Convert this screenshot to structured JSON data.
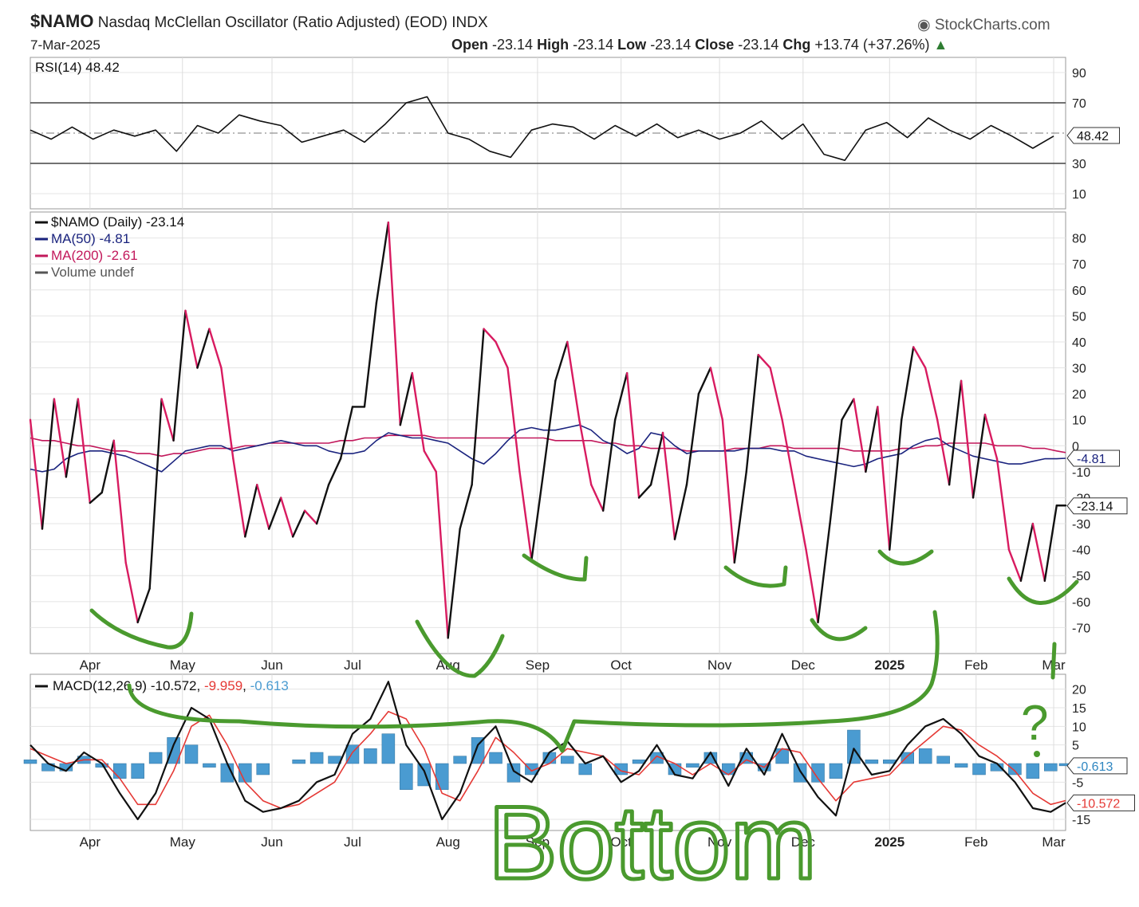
{
  "header": {
    "symbol": "$NAMO",
    "name": "Nasdaq McClellan Oscillator (Ratio Adjusted) (EOD)",
    "exchange": "INDX",
    "date": "7-Mar-2025",
    "brand": "StockCharts.com",
    "ohlc": [
      {
        "label": "Open",
        "value": "-23.14"
      },
      {
        "label": "High",
        "value": "-23.14"
      },
      {
        "label": "Low",
        "value": "-23.14"
      },
      {
        "label": "Close",
        "value": "-23.14"
      },
      {
        "label": "Chg",
        "value": "+13.74 (+37.26%)"
      }
    ]
  },
  "annotations": {
    "question": "?",
    "bottom_word": "Bottom",
    "color": "#4a9a2e"
  },
  "chart_data": [
    {
      "type": "line",
      "panel": "rsi",
      "legend": "RSI(14) 48.42",
      "last_label": "48.42",
      "ylim": [
        0,
        100
      ],
      "ticks": [
        10,
        30,
        70,
        90
      ],
      "ref_lines": [
        30,
        50,
        70
      ],
      "x": [
        0,
        7,
        14,
        21,
        28,
        35,
        42,
        49,
        56,
        63,
        70,
        77,
        84,
        91,
        98,
        105,
        112,
        119,
        126,
        133,
        140,
        147,
        154,
        161,
        168,
        175,
        182,
        189,
        196,
        203,
        210,
        217,
        224,
        231,
        238,
        245,
        252,
        259,
        266,
        273,
        280,
        287,
        294,
        301,
        308,
        315,
        322,
        329,
        336,
        343
      ],
      "series": [
        {
          "values": [
            52,
            46,
            54,
            46,
            52,
            48,
            52,
            38,
            55,
            50,
            62,
            58,
            55,
            44,
            48,
            52,
            44,
            56,
            70,
            74,
            50,
            46,
            38,
            34,
            52,
            56,
            54,
            46,
            55,
            48,
            56,
            47,
            52,
            46,
            50,
            58,
            46,
            56,
            36,
            32,
            52,
            57,
            47,
            60,
            52,
            46,
            55,
            48,
            40,
            48
          ]
        }
      ],
      "color": "#111111"
    },
    {
      "type": "line",
      "panel": "main",
      "ylim": [
        -80,
        90
      ],
      "ticks": [
        -70,
        -60,
        -50,
        -40,
        -30,
        -20,
        -10,
        0,
        10,
        20,
        30,
        40,
        50,
        60,
        70,
        80
      ],
      "legend": [
        {
          "text": "$NAMO (Daily) -23.14",
          "color": "#111111"
        },
        {
          "text": "MA(50) -4.81",
          "color": "#1a237e"
        },
        {
          "text": "MA(200) -2.61",
          "color": "#c2185b"
        },
        {
          "text": "Volume undef",
          "color": "#555555"
        }
      ],
      "last_labels": [
        {
          "text": "-4.81",
          "value": -4.81
        },
        {
          "text": "-23.14",
          "value": -23.14
        }
      ],
      "x_labels": [
        {
          "label": "Apr",
          "day": 20
        },
        {
          "label": "May",
          "day": 51
        },
        {
          "label": "Jun",
          "day": 81
        },
        {
          "label": "Jul",
          "day": 108
        },
        {
          "label": "Aug",
          "day": 140
        },
        {
          "label": "Sep",
          "day": 170
        },
        {
          "label": "Oct",
          "day": 198
        },
        {
          "label": "Nov",
          "day": 231
        },
        {
          "label": "Dec",
          "day": 259
        },
        {
          "label": "2025",
          "day": 288
        },
        {
          "label": "Feb",
          "day": 317
        },
        {
          "label": "Mar",
          "day": 343
        }
      ],
      "x": [
        0,
        4,
        8,
        12,
        16,
        20,
        24,
        28,
        32,
        36,
        40,
        44,
        48,
        52,
        56,
        60,
        64,
        68,
        72,
        76,
        80,
        84,
        88,
        92,
        96,
        100,
        104,
        108,
        112,
        116,
        120,
        124,
        128,
        132,
        136,
        140,
        144,
        148,
        152,
        156,
        160,
        164,
        168,
        172,
        176,
        180,
        184,
        188,
        192,
        196,
        200,
        204,
        208,
        212,
        216,
        220,
        224,
        228,
        232,
        236,
        240,
        244,
        248,
        252,
        256,
        260,
        264,
        268,
        272,
        276,
        280,
        284,
        288,
        292,
        296,
        300,
        304,
        308,
        312,
        316,
        320,
        324,
        328,
        332,
        336,
        340,
        344,
        347
      ],
      "series": [
        {
          "name": "$NAMO (Daily)",
          "values": [
            10,
            -32,
            18,
            -12,
            18,
            -22,
            -18,
            2,
            -45,
            -68,
            -55,
            18,
            2,
            52,
            30,
            45,
            30,
            -5,
            -35,
            -15,
            -32,
            -20,
            -35,
            -25,
            -30,
            -15,
            -5,
            15,
            15,
            55,
            86,
            8,
            28,
            -2,
            -10,
            -74,
            -32,
            -15,
            45,
            40,
            30,
            -10,
            -44,
            -10,
            25,
            40,
            10,
            -15,
            -25,
            10,
            28,
            -20,
            -15,
            5,
            -36,
            -15,
            20,
            30,
            10,
            -45,
            -10,
            35,
            30,
            10,
            -15,
            -40,
            -68,
            -30,
            10,
            18,
            -10,
            15,
            -40,
            10,
            38,
            30,
            10,
            -15,
            25,
            -20,
            12,
            -5,
            -40,
            -52,
            -30,
            -52,
            -23,
            -23
          ]
        },
        {
          "name": "MA(50)",
          "values": [
            -9,
            -10,
            -9,
            -5,
            -3,
            -2,
            -2,
            -3,
            -4,
            -6,
            -8,
            -10,
            -6,
            -2,
            -1,
            0,
            0,
            -2,
            -1,
            0,
            1,
            2,
            1,
            0,
            0,
            -2,
            -3,
            -3,
            -2,
            2,
            5,
            4,
            3,
            3,
            2,
            1,
            -2,
            -5,
            -7,
            -3,
            2,
            6,
            7,
            6,
            6,
            7,
            8,
            6,
            2,
            0,
            -3,
            -1,
            5,
            4,
            0,
            -3,
            -2,
            -2,
            -2,
            -2,
            -1,
            -1,
            -1,
            -2,
            -2,
            -4,
            -5,
            -6,
            -7,
            -8,
            -7,
            -5,
            -4,
            -3,
            0,
            2,
            3,
            0,
            -2,
            -4,
            -5,
            -6,
            -7,
            -7,
            -6,
            -5,
            -5,
            -4.81
          ]
        },
        {
          "name": "MA(200)",
          "values": [
            3,
            2,
            2,
            1,
            0,
            0,
            -1,
            -2,
            -2,
            -3,
            -3,
            -4,
            -3,
            -3,
            -2,
            -1,
            -1,
            -1,
            0,
            0,
            1,
            1,
            1,
            1,
            1,
            1,
            2,
            2,
            3,
            3,
            4,
            4,
            4,
            4,
            3,
            3,
            3,
            3,
            3,
            3,
            3,
            3,
            3,
            3,
            2,
            2,
            2,
            2,
            1,
            1,
            0,
            0,
            -1,
            -1,
            -1,
            -2,
            -2,
            -2,
            -2,
            -1,
            -1,
            -1,
            0,
            0,
            -1,
            -1,
            -1,
            -1,
            -1,
            -2,
            -2,
            -2,
            -2,
            -1,
            -1,
            0,
            0,
            1,
            1,
            1,
            1,
            0,
            0,
            0,
            -1,
            -1,
            -2,
            -2.61
          ]
        }
      ]
    },
    {
      "type": "line",
      "panel": "macd",
      "legend": {
        "prefix": "MACD(12,26,9)",
        "macd": "-10.572",
        "signal": "-9.959",
        "hist": "-0.613"
      },
      "last_labels": [
        {
          "text": "-0.613",
          "value": -0.613,
          "fill": "#2e86c1"
        },
        {
          "text": "-10.572",
          "value": -10.572,
          "fill": "#e53935"
        }
      ],
      "ylim": [
        -18,
        24
      ],
      "ticks": [
        -15,
        -5,
        5,
        10,
        15,
        20
      ],
      "x": [
        0,
        6,
        12,
        18,
        24,
        30,
        36,
        42,
        48,
        54,
        60,
        66,
        72,
        78,
        84,
        90,
        96,
        102,
        108,
        114,
        120,
        126,
        132,
        138,
        144,
        150,
        156,
        162,
        168,
        174,
        180,
        186,
        192,
        198,
        204,
        210,
        216,
        222,
        228,
        234,
        240,
        246,
        252,
        258,
        264,
        270,
        276,
        282,
        288,
        294,
        300,
        306,
        312,
        318,
        324,
        330,
        336,
        342,
        347
      ],
      "series": [
        {
          "name": "MACD",
          "values": [
            5,
            0,
            -2,
            3,
            0,
            -8,
            -15,
            -8,
            5,
            15,
            12,
            0,
            -10,
            -13,
            -12,
            -10,
            -5,
            -3,
            8,
            12,
            22,
            5,
            -2,
            -15,
            -8,
            5,
            10,
            -2,
            -5,
            3,
            6,
            0,
            2,
            -5,
            -2,
            5,
            -3,
            -4,
            3,
            -6,
            4,
            -3,
            8,
            -2,
            -9,
            -14,
            4,
            -3,
            -2,
            5,
            10,
            12,
            8,
            2,
            0,
            -5,
            -12,
            -13,
            -10.572
          ]
        },
        {
          "name": "Signal",
          "values": [
            4,
            2,
            0,
            1,
            1,
            -4,
            -11,
            -11,
            -2,
            10,
            13,
            5,
            -5,
            -10,
            -12,
            -11,
            -8,
            -5,
            3,
            8,
            14,
            12,
            4,
            -8,
            -10,
            -2,
            7,
            3,
            -2,
            0,
            4,
            3,
            2,
            -2,
            -3,
            2,
            0,
            -3,
            0,
            -3,
            1,
            -1,
            4,
            3,
            -4,
            -10,
            -5,
            -4,
            -3,
            2,
            6,
            10,
            9,
            5,
            2,
            -2,
            -8,
            -11,
            -9.959
          ]
        }
      ],
      "histogram": [
        {
          "x": [
            0,
            6,
            12,
            18,
            24,
            30,
            36,
            42,
            48,
            54,
            60,
            66,
            72,
            78,
            84,
            90,
            96,
            102,
            108,
            114,
            120,
            126,
            132,
            138,
            144,
            150,
            156,
            162,
            168,
            174,
            180,
            186,
            192,
            198,
            204,
            210,
            216,
            222,
            228,
            234,
            240,
            246,
            252,
            258,
            264,
            270,
            276,
            282,
            288,
            294,
            300,
            306,
            312,
            318,
            324,
            330,
            336,
            342,
            347
          ]
        },
        {
          "values": [
            1,
            -2,
            -2,
            2,
            -1,
            -4,
            -4,
            3,
            7,
            5,
            -1,
            -5,
            -5,
            -3,
            0,
            1,
            3,
            2,
            5,
            4,
            8,
            -7,
            -6,
            -7,
            2,
            7,
            3,
            -5,
            -3,
            3,
            2,
            -3,
            0,
            -3,
            1,
            3,
            -3,
            -1,
            3,
            -3,
            3,
            -2,
            4,
            -5,
            -5,
            -4,
            9,
            1,
            1,
            3,
            4,
            2,
            -1,
            -3,
            -2,
            -3,
            -4,
            -2,
            -0.613
          ]
        }
      ],
      "x_labels": [
        {
          "label": "Apr",
          "day": 20
        },
        {
          "label": "May",
          "day": 51
        },
        {
          "label": "Jun",
          "day": 81
        },
        {
          "label": "Jul",
          "day": 108
        },
        {
          "label": "Aug",
          "day": 140
        },
        {
          "label": "Sep",
          "day": 170
        },
        {
          "label": "Oct",
          "day": 198
        },
        {
          "label": "Nov",
          "day": 231
        },
        {
          "label": "Dec",
          "day": 259
        },
        {
          "label": "2025",
          "day": 288
        },
        {
          "label": "Feb",
          "day": 317
        },
        {
          "label": "Mar",
          "day": 343
        }
      ]
    }
  ]
}
